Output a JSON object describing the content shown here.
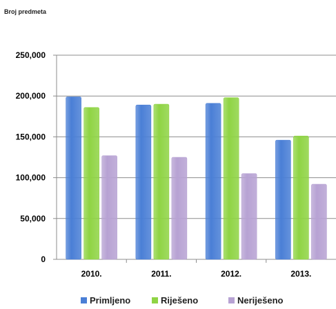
{
  "chart_data": {
    "type": "bar",
    "ylabel": "Broj predmeta",
    "categories": [
      "2010.",
      "2011.",
      "2012.",
      "2013."
    ],
    "ylim": [
      0,
      250000
    ],
    "yticks": [
      0,
      50000,
      100000,
      150000,
      200000,
      250000
    ],
    "ytick_labels": [
      "0",
      "50,000",
      "100,000",
      "150,000",
      "200,000",
      "250,000"
    ],
    "grid": true,
    "legend_position": "bottom",
    "series": [
      {
        "name": "Primljeno",
        "color": "#4a7fd6",
        "values": [
          199000,
          189000,
          191000,
          146000
        ]
      },
      {
        "name": "Riješeno",
        "color": "#8fd444",
        "values": [
          186000,
          190000,
          198000,
          151000
        ]
      },
      {
        "name": "Neriješeno",
        "color": "#b7a2d3",
        "values": [
          127000,
          125000,
          105000,
          92000
        ]
      }
    ]
  }
}
